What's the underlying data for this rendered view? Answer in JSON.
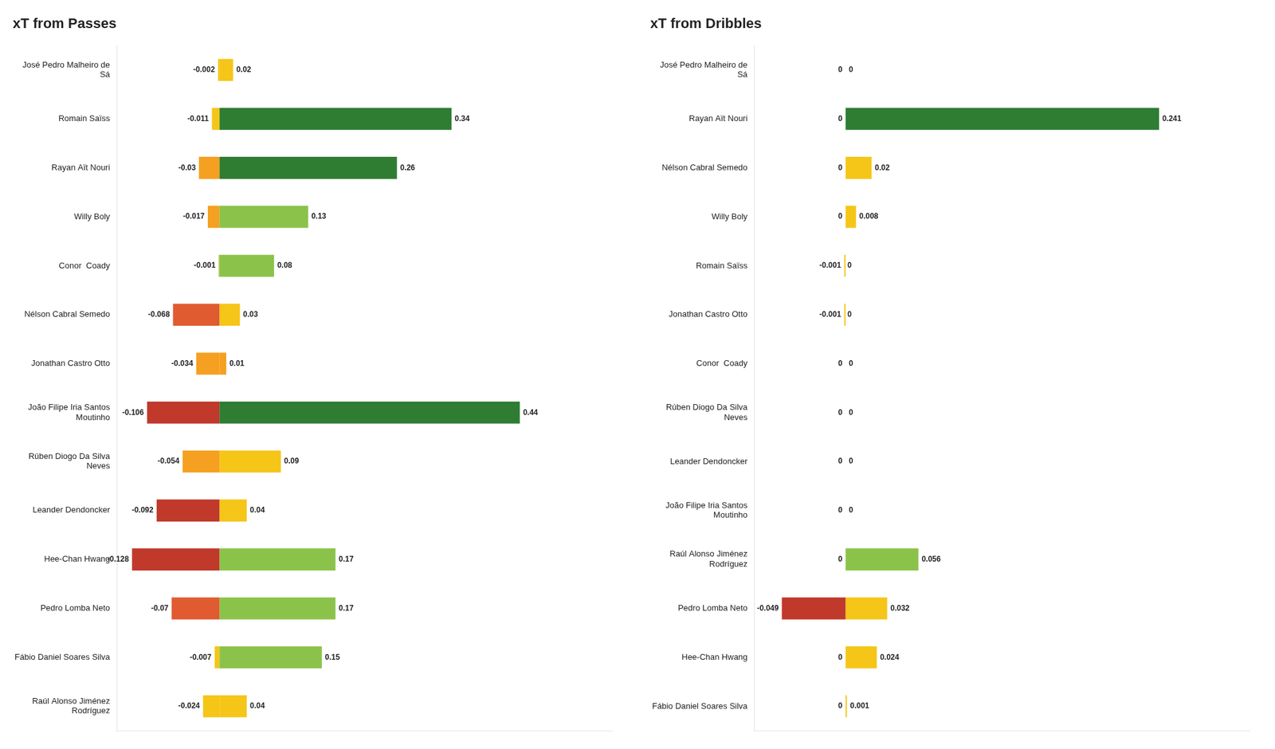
{
  "chart_data": [
    {
      "type": "bar",
      "orientation": "horizontal",
      "stacked": true,
      "title": "xT from Passes",
      "categories": [
        "José Pedro Malheiro de\nSá",
        "Romain Saïss",
        "Rayan Aït Nouri",
        "Willy Boly",
        "Conor  Coady",
        "Nélson Cabral Semedo",
        "Jonathan Castro Otto",
        "João Filipe Iria Santos\nMoutinho",
        "Rúben Diogo Da Silva\nNeves",
        "Leander Dendoncker",
        "Hee-Chan Hwang",
        "Pedro Lomba Neto",
        "Fábio Daniel Soares Silva",
        "Raúl Alonso Jiménez\nRodríguez"
      ],
      "series": [
        {
          "values": [
            -0.002,
            -0.011,
            -0.03,
            -0.017,
            -0.001,
            -0.068,
            -0.034,
            -0.106,
            -0.054,
            -0.092,
            -0.128,
            -0.07,
            -0.007,
            -0.024
          ],
          "colors": [
            "#f5c518",
            "#f5c518",
            "#f5a020",
            "#f5a020",
            "#b8bc30",
            "#e05b30",
            "#f5a020",
            "#c0392b",
            "#f5a020",
            "#c0392b",
            "#c0392b",
            "#e05b30",
            "#f5c518",
            "#f5c518"
          ]
        },
        {
          "values": [
            0.02,
            0.34,
            0.26,
            0.13,
            0.08,
            0.03,
            0.01,
            0.44,
            0.09,
            0.04,
            0.17,
            0.17,
            0.15,
            0.04
          ],
          "colors": [
            "#f5c518",
            "#2e7d32",
            "#2e7d32",
            "#8bc34a",
            "#8bc34a",
            "#f5c518",
            "#f5a020",
            "#2e7d32",
            "#f5c518",
            "#f5c518",
            "#8bc34a",
            "#8bc34a",
            "#8bc34a",
            "#f5c518"
          ]
        }
      ],
      "xlim": [
        -0.15,
        0.575
      ],
      "grid": false,
      "tick_labels": "y",
      "data_labels": true
    },
    {
      "type": "bar",
      "orientation": "horizontal",
      "stacked": true,
      "title": "xT from Dribbles",
      "categories": [
        "José Pedro Malheiro de\nSá",
        "Rayan Aït Nouri",
        "Nélson Cabral Semedo",
        "Willy Boly",
        "Romain Saïss",
        "Jonathan Castro Otto",
        "Conor  Coady",
        "Rúben Diogo Da Silva\nNeves",
        "Leander Dendoncker",
        "João Filipe Iria Santos\nMoutinho",
        "Raúl Alonso Jiménez\nRodríguez",
        "Pedro Lomba Neto",
        "Hee-Chan Hwang",
        "Fábio Daniel Soares Silva"
      ],
      "series": [
        {
          "values": [
            0,
            0,
            0,
            0,
            -0.001,
            -0.001,
            0,
            0,
            0,
            0,
            0,
            -0.049,
            0,
            0
          ],
          "colors": [
            "#f5c518",
            "#2e7d32",
            "#f5c518",
            "#f5c518",
            "#f5c518",
            "#f5c518",
            "#f5c518",
            "#f5c518",
            "#f5c518",
            "#f5c518",
            "#f5c518",
            "#c0392b",
            "#f5c518",
            "#f5c518"
          ]
        },
        {
          "values": [
            0,
            0.241,
            0.02,
            0.008,
            0,
            0,
            0,
            0,
            0,
            0,
            0.056,
            0.032,
            0.024,
            0.001
          ],
          "colors": [
            "#f5c518",
            "#2e7d32",
            "#f5c518",
            "#f5c518",
            "#f5c518",
            "#f5c518",
            "#f5c518",
            "#f5c518",
            "#f5c518",
            "#f5c518",
            "#8bc34a",
            "#f5c518",
            "#f5c518",
            "#f5c518"
          ]
        }
      ],
      "xlim": [
        -0.07,
        0.3105
      ],
      "grid": false,
      "tick_labels": "y",
      "data_labels": true
    }
  ]
}
